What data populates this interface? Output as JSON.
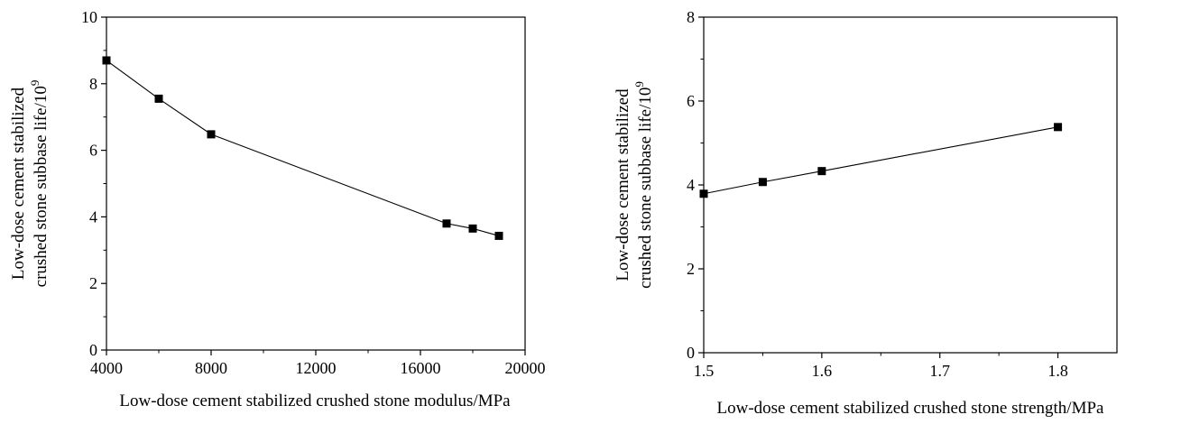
{
  "chart_data": [
    {
      "type": "line",
      "title": "",
      "xlabel": "Low-dose cement stabilized crushed stone modulus/MPa",
      "ylabel_lines": [
        "Low-dose cement stabilized",
        "crushed stone subbase life/10"
      ],
      "ylabel_superscript": "9",
      "xlim": [
        4000,
        20000
      ],
      "ylim": [
        0,
        10
      ],
      "xticks": [
        4000,
        8000,
        12000,
        16000,
        20000
      ],
      "xtick_labels": [
        "4000",
        "8000",
        "12000",
        "16000",
        "20000"
      ],
      "yticks": [
        0,
        2,
        4,
        6,
        8,
        10
      ],
      "ytick_labels": [
        "0",
        "2",
        "4",
        "6",
        "8",
        "10"
      ],
      "grid": false,
      "legend": "none",
      "series": [
        {
          "x": [
            4000,
            6000,
            8000,
            17000,
            18000,
            19000
          ],
          "y": [
            8.7,
            7.55,
            6.48,
            3.8,
            3.65,
            3.43
          ],
          "color": "#000000",
          "marker": "square"
        }
      ]
    },
    {
      "type": "line",
      "title": "",
      "xlabel": "Low-dose cement stabilized crushed stone strength/MPa",
      "ylabel_lines": [
        "Low-dose cement stabilized",
        "crushed stone subbase life/10"
      ],
      "ylabel_superscript": "9",
      "xlim": [
        1.5,
        1.85
      ],
      "ylim": [
        0,
        8
      ],
      "xticks": [
        1.5,
        1.6,
        1.7,
        1.8
      ],
      "xtick_labels": [
        "1.5",
        "1.6",
        "1.7",
        "1.8"
      ],
      "yticks": [
        0,
        2,
        4,
        6,
        8
      ],
      "ytick_labels": [
        "0",
        "2",
        "4",
        "6",
        "8"
      ],
      "grid": false,
      "legend": "none",
      "series": [
        {
          "x": [
            1.5,
            1.55,
            1.6,
            1.8
          ],
          "y": [
            3.79,
            4.07,
            4.33,
            5.38
          ],
          "color": "#000000",
          "marker": "square"
        }
      ]
    }
  ]
}
